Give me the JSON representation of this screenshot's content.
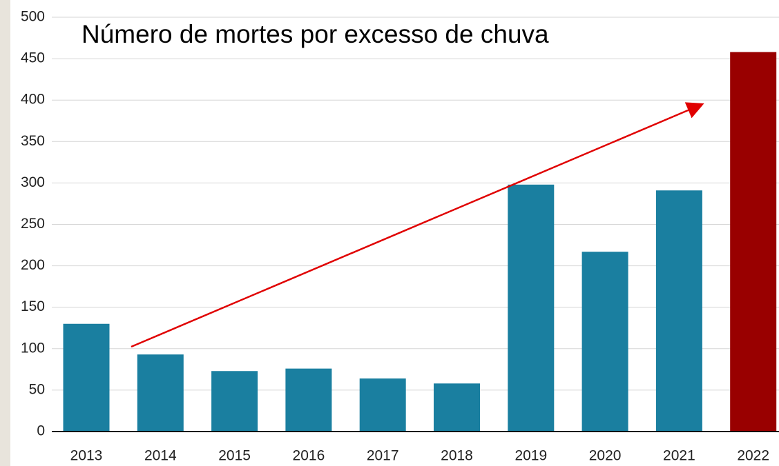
{
  "chart_data": {
    "type": "bar",
    "title": "Número de mortes por excesso de chuva",
    "categories": [
      "2013",
      "2014",
      "2015",
      "2016",
      "2017",
      "2018",
      "2019",
      "2020",
      "2021",
      "2022"
    ],
    "values": [
      130,
      93,
      73,
      76,
      64,
      58,
      298,
      217,
      291,
      458
    ],
    "colors": [
      "#1a7fa0",
      "#1a7fa0",
      "#1a7fa0",
      "#1a7fa0",
      "#1a7fa0",
      "#1a7fa0",
      "#1a7fa0",
      "#1a7fa0",
      "#1a7fa0",
      "#990000"
    ],
    "ylim": [
      0,
      500
    ],
    "yticks": [
      0,
      50,
      100,
      150,
      200,
      250,
      300,
      350,
      400,
      450,
      500
    ],
    "grid": true
  }
}
